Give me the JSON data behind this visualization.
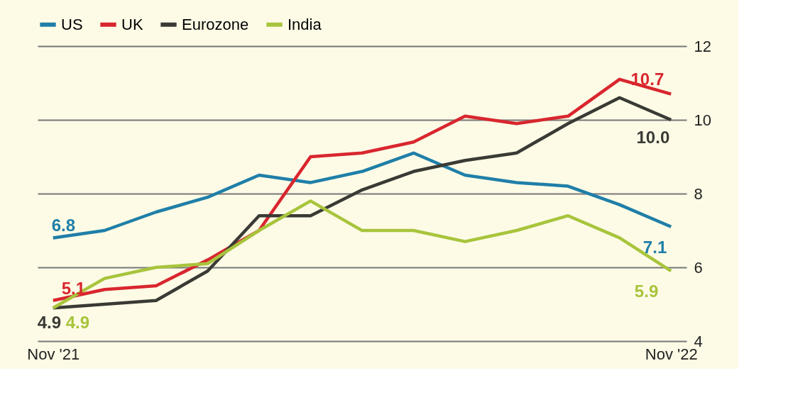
{
  "chart_data": {
    "type": "line",
    "categories": [
      "Nov '21",
      null,
      null,
      null,
      null,
      null,
      null,
      null,
      null,
      null,
      null,
      null,
      "Nov '22"
    ],
    "series": [
      {
        "name": "US",
        "color": "#1f7fa8",
        "values": [
          6.8,
          7.0,
          7.5,
          7.9,
          8.5,
          8.3,
          8.6,
          9.1,
          8.5,
          8.3,
          8.2,
          7.7,
          7.1
        ]
      },
      {
        "name": "UK",
        "color": "#d9262e",
        "values": [
          5.1,
          5.4,
          5.5,
          6.2,
          7.0,
          9.0,
          9.1,
          9.4,
          10.1,
          9.9,
          10.1,
          11.1,
          10.7
        ]
      },
      {
        "name": "Eurozone",
        "color": "#3a3a35",
        "values": [
          4.9,
          5.0,
          5.1,
          5.9,
          7.4,
          7.4,
          8.1,
          8.6,
          8.9,
          9.1,
          9.9,
          10.6,
          10.0
        ]
      },
      {
        "name": "India",
        "color": "#a8c43c",
        "values": [
          4.9,
          5.7,
          6.0,
          6.1,
          7.0,
          7.8,
          7.0,
          7.0,
          6.7,
          7.0,
          7.4,
          6.8,
          5.9
        ]
      }
    ],
    "annotations": [
      {
        "text": "6.8",
        "x": "Nov '21",
        "y": 6.8
      },
      {
        "text": "5.1",
        "x": "Nov '21",
        "y": 5.1
      },
      {
        "text": "4.9",
        "x": "Nov '21",
        "y": 4.9
      },
      {
        "text": "4.9",
        "x": "Nov '21",
        "y": 4.9
      },
      {
        "text": "10.7",
        "x": "Nov '22",
        "y": 10.7
      },
      {
        "text": "10.0",
        "x": "Nov '22",
        "y": 10.0
      },
      {
        "text": "5.9",
        "x": "Nov '22",
        "y": 5.9
      },
      {
        "text": "7.1",
        "x": "Nov '22",
        "y": 7.1
      }
    ],
    "ylim": [
      4,
      12
    ],
    "yticks": [
      4,
      6,
      8,
      10,
      12
    ],
    "grid": "y",
    "legend": "top",
    "line_style": "solid"
  }
}
